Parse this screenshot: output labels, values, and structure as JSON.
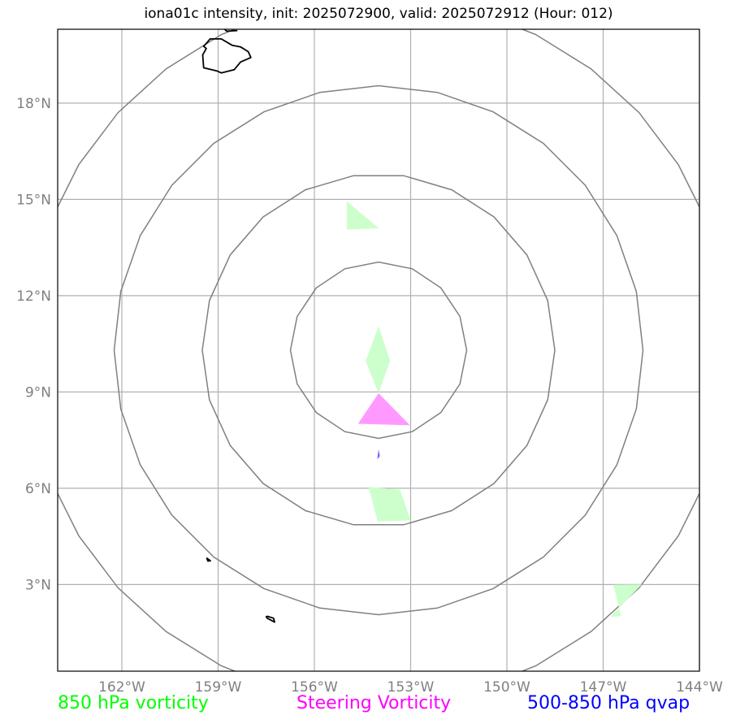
{
  "title": "iona01c intensity, init: 2025072900, valid: 2025072912 (Hour: 012)",
  "map_data": {
    "lon_range": [
      -164,
      -144
    ],
    "lat_range": [
      0.3,
      20.3
    ],
    "lon_ticks": [
      {
        "value": -162,
        "label": "162°W"
      },
      {
        "value": -159,
        "label": "159°W"
      },
      {
        "value": -156,
        "label": "156°W"
      },
      {
        "value": -153,
        "label": "153°W"
      },
      {
        "value": -150,
        "label": "150°W"
      },
      {
        "value": -147,
        "label": "147°W"
      },
      {
        "value": -144,
        "label": "144°W"
      }
    ],
    "lat_ticks": [
      {
        "value": 3,
        "label": "3°N"
      },
      {
        "value": 6,
        "label": "6°N"
      },
      {
        "value": 9,
        "label": "9°N"
      },
      {
        "value": 12,
        "label": "12°N"
      },
      {
        "value": 15,
        "label": "15°N"
      },
      {
        "value": 18,
        "label": "18°N"
      }
    ],
    "range_rings": {
      "center": [
        -154,
        10.3
      ],
      "count": 4
    },
    "vorticity_850": {
      "color": "#ccffcc",
      "shapes": [
        [
          [
            -154.99,
            14.94
          ],
          [
            -153.99,
            14.1
          ],
          [
            -154.99,
            14.06
          ]
        ],
        [
          [
            -154.0,
            11.05
          ],
          [
            -153.64,
            9.96
          ],
          [
            -154.0,
            8.96
          ],
          [
            -154.4,
            9.96
          ]
        ],
        [
          [
            -154.31,
            6.04
          ],
          [
            -153.33,
            5.95
          ],
          [
            -153.0,
            5.0
          ],
          [
            -154.03,
            4.96
          ]
        ],
        [
          [
            -146.68,
            2.99
          ],
          [
            -145.8,
            3.0
          ],
          [
            -146.77,
            1.99
          ],
          [
            -146.44,
            2.02
          ]
        ]
      ]
    },
    "steering_vorticity": {
      "color": "#ff99ff",
      "shapes": [
        [
          [
            -154.0,
            8.96
          ],
          [
            -153.02,
            7.96
          ],
          [
            -154.64,
            8.01
          ]
        ]
      ]
    },
    "qvap_500_850": {
      "color": "#0000ff",
      "shapes": [
        [
          [
            -154.0,
            7.22
          ],
          [
            -153.96,
            7.0
          ],
          [
            -154.04,
            6.9
          ]
        ]
      ]
    },
    "coastlines": [
      {
        "name": "Hawaii",
        "closed": true,
        "points": [
          [
            -159.25,
            20.0
          ],
          [
            -158.9,
            20.0
          ],
          [
            -158.56,
            19.8
          ],
          [
            -158.3,
            19.75
          ],
          [
            -158.06,
            19.6
          ],
          [
            -157.98,
            19.42
          ],
          [
            -158.3,
            19.28
          ],
          [
            -158.5,
            19.04
          ],
          [
            -158.9,
            18.94
          ],
          [
            -159.03,
            19.0
          ],
          [
            -159.2,
            19.04
          ],
          [
            -159.45,
            19.1
          ],
          [
            -159.48,
            19.5
          ],
          [
            -159.37,
            19.7
          ],
          [
            -159.45,
            19.77
          ],
          [
            -159.35,
            19.88
          ]
        ]
      },
      {
        "name": "Maui",
        "closed": false,
        "points": [
          [
            -158.8,
            20.3
          ],
          [
            -158.73,
            20.24
          ],
          [
            -158.4,
            20.26
          ]
        ]
      },
      {
        "name": "Atoll A",
        "closed": true,
        "points": [
          [
            -159.35,
            3.82
          ],
          [
            -159.24,
            3.74
          ],
          [
            -159.32,
            3.73
          ]
        ]
      },
      {
        "name": "Atoll B",
        "closed": true,
        "points": [
          [
            -157.46,
            2.01
          ],
          [
            -157.27,
            1.95
          ],
          [
            -157.24,
            1.83
          ],
          [
            -157.47,
            1.95
          ],
          [
            -157.5,
            2.0
          ]
        ]
      }
    ]
  },
  "legend": {
    "vorticity_850": "850 hPa vorticity",
    "steering": "Steering Vorticity",
    "qvap": "500-850 hPa qvap"
  }
}
